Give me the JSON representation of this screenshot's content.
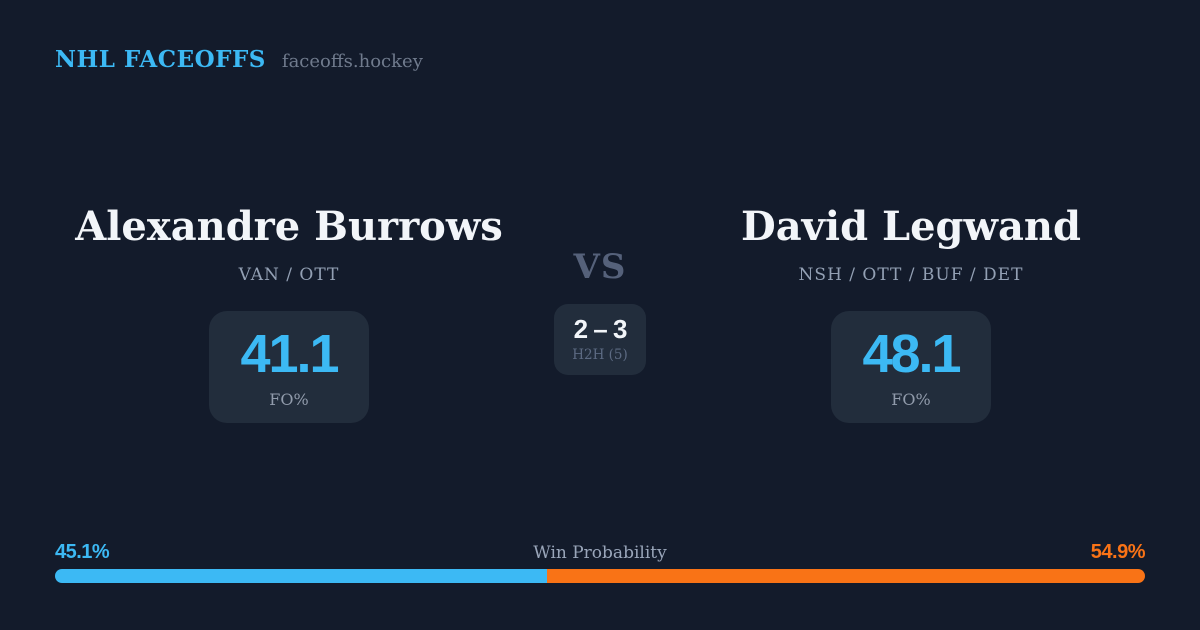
{
  "header": {
    "brand": "NHL FACEOFFS",
    "site": "faceoffs.hockey"
  },
  "matchup": {
    "left_player": {
      "name": "Alexandre Burrows",
      "teams": "VAN / OTT",
      "fo_pct": "41.1",
      "fo_label": "FO%",
      "win_prob_label": "45.1%",
      "win_prob_value": 45.1,
      "color": "#3cb9f4"
    },
    "right_player": {
      "name": "David Legwand",
      "teams": "NSH / OTT / BUF / DET",
      "fo_pct": "48.1",
      "fo_label": "FO%",
      "win_prob_label": "54.9%",
      "win_prob_value": 54.9,
      "color": "#f97316"
    },
    "center": {
      "vs": "VS",
      "h2h_score": "2 – 3",
      "h2h_label": "H2H (5)"
    }
  },
  "win_bar": {
    "title": "Win Probability",
    "left_pct": 45.1,
    "right_pct": 54.9,
    "left_color": "#3cb9f4",
    "right_color": "#f97316"
  },
  "colors": {
    "background": "#131b2b",
    "card_background": "#222d3c",
    "accent_blue": "#3cb9f4",
    "accent_orange": "#f97316",
    "text_primary": "#f2f5f9",
    "text_secondary": "#93a0b4"
  }
}
